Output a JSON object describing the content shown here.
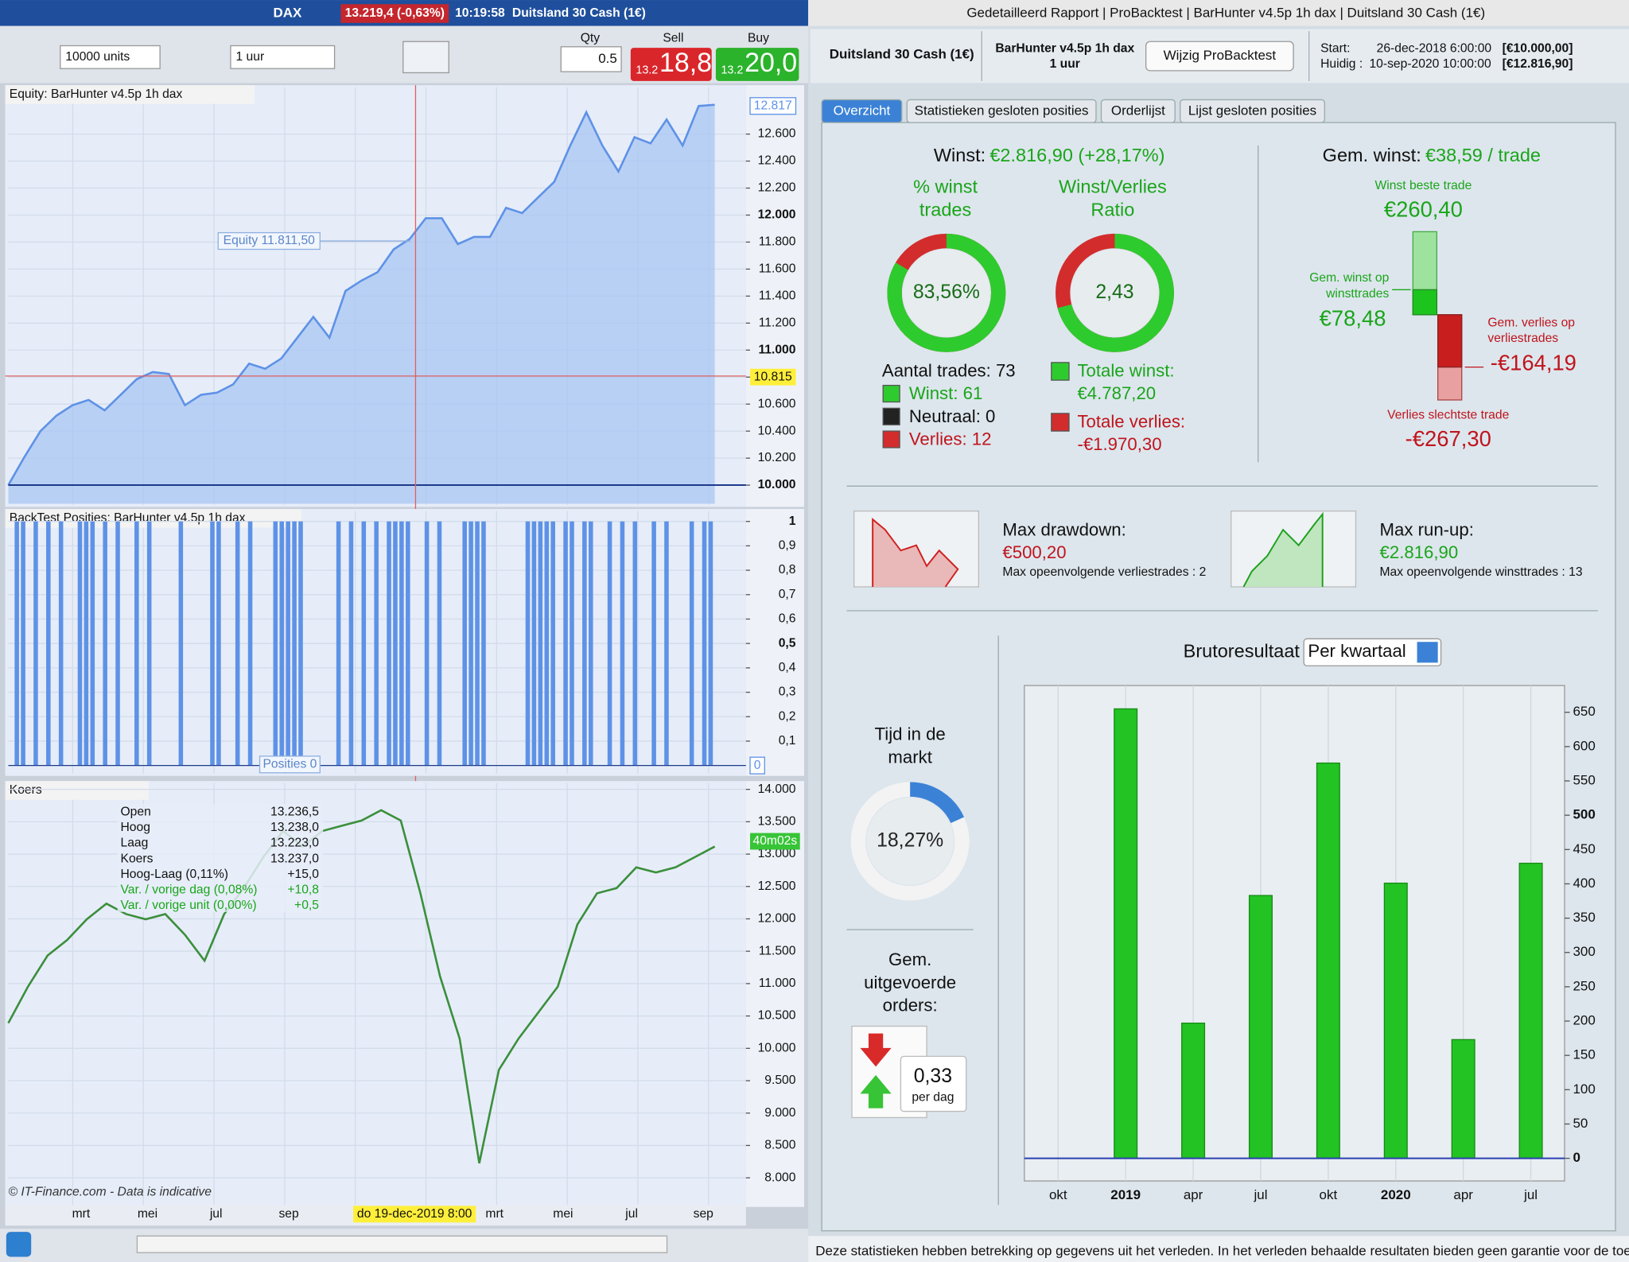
{
  "left_window": {
    "title_bar": {
      "symbol": "DAX",
      "quote": "13.219,4 (-0,63%)",
      "time": "10:19:58",
      "instrument": "Duitsland 30 Cash (1€)"
    },
    "toolbar": {
      "units": "10000 units",
      "interval": "1 uur",
      "qty_label": "Qty",
      "qty": "0.5",
      "sell_label": "Sell",
      "sell_prefix": "13.2",
      "sell": "18,8",
      "buy_label": "Buy",
      "buy_prefix": "13.2",
      "buy": "20,0"
    },
    "equity_tooltip": "Equity 11.811,50",
    "equity_last": "12.817",
    "crosshair_value": "10.815",
    "positions_tooltip": "Posities 0",
    "positions_last": "0",
    "price_timer": "40m02s",
    "ohlc": [
      [
        "Open",
        "13.236,5"
      ],
      [
        "Hoog",
        "13.238,0"
      ],
      [
        "Laag",
        "13.223,0"
      ],
      [
        "Koers",
        "13.237,0"
      ],
      [
        "Hoog-Laag (0,11%)",
        "+15,0"
      ],
      [
        "Var. / vorige dag (0,08%)",
        "+10,8"
      ],
      [
        "Var. / vorige unit (0,00%)",
        "+0,5"
      ]
    ],
    "crosshair_date": "do 19-dec-2019 8:00",
    "copyright": "© IT-Finance.com - Data is indicative"
  },
  "right_window": {
    "title": "Gedetailleerd Rapport | ProBacktest | BarHunter v4.5p 1h dax | Duitsland 30 Cash (1€)",
    "instrument": "Duitsland 30 Cash (1€)",
    "strategy": "BarHunter v4.5p 1h dax",
    "strategy_interval": "1 uur",
    "button": "Wijzig ProBacktest",
    "start_label": "Start:",
    "start_date": "26-dec-2018 6:00:00",
    "start_capital": "[€10.000,00]",
    "now_label": "Huidig :",
    "now_date": "10-sep-2020 10:00:00",
    "now_capital": "[€12.816,90]",
    "tabs": [
      "Overzicht",
      "Statistieken gesloten posities",
      "Orderlijst",
      "Lijst gesloten posities"
    ],
    "profit_label": "Winst:",
    "profit": "€2.816,90 (+28,17%)",
    "win_rate_title": [
      "% winst",
      "trades"
    ],
    "win_rate": {
      "value": 83.56,
      "label": "83,56%"
    },
    "ratio_title": [
      "Winst/Verlies",
      "Ratio"
    ],
    "ratio": {
      "value": 2.43,
      "label": "2,43"
    },
    "trades_total": "Aantal trades: 73",
    "trades_won": "Winst: 61",
    "trades_neutral": "Neutraal: 0",
    "trades_lost": "Verlies: 12",
    "total_win_label": "Totale winst:",
    "total_win": "€4.787,20",
    "total_loss_label": "Totale verlies:",
    "total_loss": "-€1.970,30",
    "avg_label": "Gem. winst:",
    "avg": "€38,59 / trade",
    "best_trade": {
      "title": "Winst beste trade",
      "value": 260.4,
      "label": "€260,40"
    },
    "avg_win": {
      "title": [
        "Gem. winst op",
        "winsttrades"
      ],
      "value": 78.48,
      "label": "€78,48"
    },
    "avg_loss": {
      "title": [
        "Gem. verlies op",
        "verliestrades"
      ],
      "value": -164.19,
      "label": "-€164,19"
    },
    "worst_trade": {
      "title": "Verlies slechtste trade",
      "value": -267.3,
      "label": "-€267,30"
    },
    "drawdown_label": "Max drawdown:",
    "drawdown": "€500,20",
    "drawdown_note": "Max opeenvolgende verliestrades : 2",
    "runup_label": "Max run-up:",
    "runup": "€2.816,90",
    "runup_note": "Max opeenvolgende winsttrades : 13",
    "time_title": [
      "Tijd in de",
      "markt"
    ],
    "time_in_market": {
      "value": 18.27,
      "label": "18,27%"
    },
    "orders_title": [
      "Gem.",
      "uitgevoerde",
      "orders:"
    ],
    "orders": "0,33",
    "orders_unit": "per dag",
    "period_select": "Per kwartaal",
    "footer": "Deze statistieken hebben betrekking op gegevens uit het verleden. In het verleden behaalde resultaten bieden geen garantie voor de toekomst"
  },
  "chart_data": [
    {
      "type": "line",
      "title": "Equity: BarHunter v4.5p 1h dax",
      "color": "#5e92e6",
      "values": [
        10000,
        10208,
        10400,
        10515,
        10592,
        10631,
        10554,
        10669,
        10785,
        10838,
        10823,
        10592,
        10669,
        10685,
        10746,
        10900,
        10862,
        10938,
        11092,
        11246,
        11092,
        11438,
        11515,
        11577,
        11746,
        11823,
        11977,
        11977,
        11785,
        11838,
        11838,
        12054,
        12015,
        12131,
        12246,
        12515,
        12762,
        12515,
        12323,
        12577,
        12531,
        12708,
        12515,
        12808,
        12817
      ],
      "ylim": [
        9862,
        12862
      ],
      "yticks": [
        {
          "value": 10000,
          "label": "10.000"
        },
        {
          "value": 10200,
          "label": "10.200"
        },
        {
          "value": 10400,
          "label": "10.400"
        },
        {
          "value": 10600,
          "label": "10.600"
        },
        {
          "value": 10800,
          "label": "10.800"
        },
        {
          "value": 11000,
          "label": "11.000"
        },
        {
          "value": 11200,
          "label": "11.200"
        },
        {
          "value": 11400,
          "label": "11.400"
        },
        {
          "value": 11600,
          "label": "11.600"
        },
        {
          "value": 11800,
          "label": "11.800"
        },
        {
          "value": 12000,
          "label": "12.000"
        },
        {
          "value": 12200,
          "label": "12.200"
        },
        {
          "value": 12400,
          "label": "12.400"
        },
        {
          "value": 12600,
          "label": "12.600"
        }
      ]
    },
    {
      "type": "bar",
      "title": "BackTest Posities: BarHunter v4.5p 1h dax",
      "color": "#5e92e6",
      "values": [
        0,
        1,
        1,
        0,
        1,
        0,
        1,
        0,
        1,
        0,
        0,
        1,
        1,
        1,
        0,
        1,
        0,
        1,
        0,
        0,
        1,
        0,
        1,
        0,
        0,
        0,
        0,
        1,
        0,
        0,
        0,
        0,
        1,
        1,
        0,
        0,
        1,
        0,
        1,
        0,
        0,
        0,
        1,
        1,
        1,
        1,
        1,
        0,
        0,
        0,
        0,
        0,
        1,
        0,
        1,
        0,
        1,
        0,
        1,
        0,
        1,
        1,
        1,
        1,
        0,
        0,
        1,
        0,
        1,
        0,
        0,
        0,
        1,
        1,
        1,
        1,
        0,
        0,
        0,
        0,
        0,
        0,
        1,
        1,
        1,
        1,
        1,
        0,
        1,
        1,
        0,
        1,
        1,
        0,
        0,
        1,
        0,
        1,
        0,
        1,
        0,
        0,
        1,
        0,
        1,
        0,
        0,
        0,
        1,
        0,
        1,
        1
      ],
      "ylim": [
        0,
        1
      ],
      "yticks": [
        {
          "value": 0.1,
          "label": "0,1"
        },
        {
          "value": 0.2,
          "label": "0,2"
        },
        {
          "value": 0.3,
          "label": "0,3"
        },
        {
          "value": 0.4,
          "label": "0,4"
        },
        {
          "value": 0.5,
          "label": "0,5"
        },
        {
          "value": 0.6,
          "label": "0,6"
        },
        {
          "value": 0.7,
          "label": "0,7"
        },
        {
          "value": 0.8,
          "label": "0,8"
        },
        {
          "value": 0.9,
          "label": "0,9"
        },
        1
      ]
    },
    {
      "type": "line",
      "title": "Koers",
      "color": "#3c8f3c",
      "values": [
        10390,
        10952,
        11433,
        11674,
        11994,
        12235,
        12074,
        11994,
        12074,
        11754,
        11353,
        12074,
        12475,
        12956,
        13357,
        13117,
        13357,
        13438,
        13518,
        13678,
        13518,
        12395,
        11112,
        10150,
        8225,
        9668,
        10150,
        10551,
        10952,
        11914,
        12395,
        12475,
        12796,
        12716,
        12796,
        12956,
        13117
      ],
      "ylim": [
        7743,
        14128
      ],
      "yticks": [
        {
          "value": 8000,
          "label": "8.000"
        },
        {
          "value": 8500,
          "label": "8.500"
        },
        {
          "value": 9000,
          "label": "9.000"
        },
        {
          "value": 9500,
          "label": "9.500"
        },
        {
          "value": 10000,
          "label": "10.000"
        },
        {
          "value": 10500,
          "label": "10.500"
        },
        {
          "value": 11000,
          "label": "11.000"
        },
        {
          "value": 11500,
          "label": "11.500"
        },
        {
          "value": 12000,
          "label": "12.000"
        },
        {
          "value": 12500,
          "label": "12.500"
        },
        {
          "value": 13000,
          "label": "13.000"
        },
        {
          "value": 13500,
          "label": "13.500"
        },
        {
          "value": 14000,
          "label": "14.000"
        }
      ],
      "x_labels": [
        "mrt",
        "mei",
        "jul",
        "sep",
        "mrt",
        "mei",
        "jul",
        "sep"
      ]
    },
    {
      "type": "bar",
      "title": "Brutoresultaat",
      "color": "#22c322",
      "categories": [
        "okt",
        "2019",
        "apr",
        "jul",
        "okt",
        "2020",
        "apr",
        "jul"
      ],
      "values": [
        null,
        655,
        197,
        383,
        576,
        401,
        173,
        430
      ],
      "ylim": [
        -33,
        689
      ],
      "yticks": [
        0,
        50,
        100,
        150,
        200,
        250,
        300,
        350,
        400,
        450,
        500,
        550,
        600,
        650
      ]
    }
  ]
}
